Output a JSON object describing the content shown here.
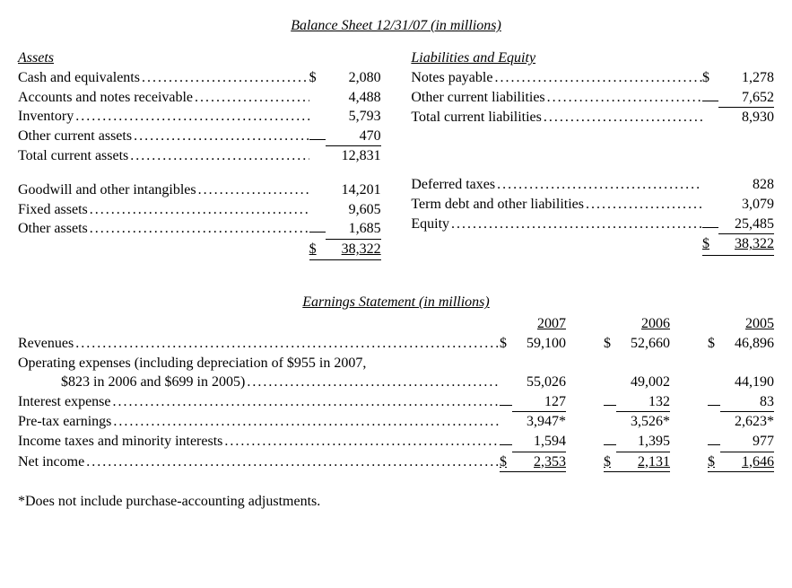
{
  "balanceSheet": {
    "title": "Balance Sheet 12/31/07 (in millions)",
    "assets": {
      "heading": "Assets",
      "rows": [
        {
          "label": "Cash and equivalents",
          "cur": "$",
          "val": "2,080"
        },
        {
          "label": "Accounts and notes receivable",
          "cur": "",
          "val": "4,488"
        },
        {
          "label": "Inventory",
          "cur": "",
          "val": "5,793"
        },
        {
          "label": "Other current assets",
          "cur": "",
          "val": "470",
          "underline": true
        },
        {
          "label": "Total current assets",
          "cur": "",
          "val": "12,831"
        }
      ],
      "rows2": [
        {
          "label": "Goodwill and other intangibles",
          "cur": "",
          "val": "14,201"
        },
        {
          "label": "Fixed assets",
          "cur": "",
          "val": "9,605"
        },
        {
          "label": "Other assets",
          "cur": "",
          "val": "1,685",
          "underline": true
        }
      ],
      "total": {
        "cur": "$",
        "val": "38,322"
      }
    },
    "liab": {
      "heading": "Liabilities and Equity",
      "rows": [
        {
          "label": "Notes payable",
          "cur": "$",
          "val": "1,278"
        },
        {
          "label": "Other current liabilities",
          "cur": "",
          "val": "7,652",
          "underline": true
        },
        {
          "label": "Total current liabilities",
          "cur": "",
          "val": "8,930"
        }
      ],
      "rows2": [
        {
          "label": "Deferred taxes",
          "cur": "",
          "val": "828"
        },
        {
          "label": "Term debt and other liabilities",
          "cur": "",
          "val": "3,079"
        },
        {
          "label": "Equity",
          "cur": "",
          "val": "25,485",
          "underline": true
        }
      ],
      "total": {
        "cur": "$",
        "val": "38,322"
      }
    }
  },
  "earnings": {
    "title": "Earnings Statement (in millions)",
    "years": [
      "2007",
      "2006",
      "2005"
    ],
    "rows": [
      {
        "label": "Revenues",
        "vals": [
          {
            "cur": "$",
            "val": "59,100"
          },
          {
            "cur": "$",
            "val": "52,660"
          },
          {
            "cur": "$",
            "val": "46,896"
          }
        ]
      },
      {
        "label": "Operating expenses (including depreciation of $955 in 2007,",
        "nodots": true,
        "novals": true
      },
      {
        "label": "$823 in 2006 and $699 in 2005)",
        "indent": true,
        "vals": [
          {
            "cur": "",
            "val": "55,026"
          },
          {
            "cur": "",
            "val": "49,002"
          },
          {
            "cur": "",
            "val": "44,190"
          }
        ]
      },
      {
        "label": "Interest expense",
        "vals": [
          {
            "cur": "",
            "val": "127",
            "u": true
          },
          {
            "cur": "",
            "val": "132",
            "u": true
          },
          {
            "cur": "",
            "val": "83",
            "u": true
          }
        ]
      },
      {
        "label": "Pre-tax earnings",
        "vals": [
          {
            "cur": "",
            "val": "3,947*"
          },
          {
            "cur": "",
            "val": "3,526*"
          },
          {
            "cur": "",
            "val": "2,623*"
          }
        ]
      },
      {
        "label": "Income taxes and minority interests",
        "vals": [
          {
            "cur": "",
            "val": "1,594",
            "u": true
          },
          {
            "cur": "",
            "val": "1,395",
            "u": true
          },
          {
            "cur": "",
            "val": "977",
            "u": true
          }
        ]
      },
      {
        "label": "Net income",
        "vals": [
          {
            "cur": "$",
            "val": "2,353",
            "dbl": true
          },
          {
            "cur": "$",
            "val": "2,131",
            "dbl": true
          },
          {
            "cur": "$",
            "val": "1,646",
            "dbl": true
          }
        ]
      }
    ],
    "footnote": "*Does not include purchase-accounting adjustments."
  }
}
